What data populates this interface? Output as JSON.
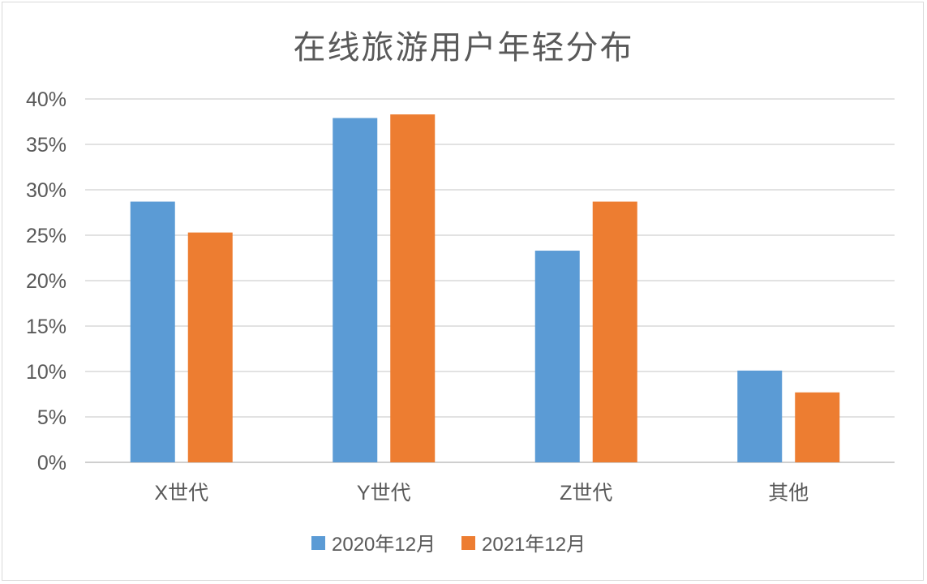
{
  "chart_data": {
    "type": "bar",
    "title": "在线旅游用户年轻分布",
    "categories": [
      "X世代",
      "Y世代",
      "Z世代",
      "其他"
    ],
    "series": [
      {
        "name": "2020年12月",
        "color": "#5b9bd5",
        "values": [
          28.7,
          37.9,
          23.3,
          10.1
        ]
      },
      {
        "name": "2021年12月",
        "color": "#ed7d31",
        "values": [
          25.3,
          38.3,
          28.7,
          7.7
        ]
      }
    ],
    "y_tick_labels": [
      "0%",
      "5%",
      "10%",
      "15%",
      "20%",
      "25%",
      "30%",
      "35%",
      "40%"
    ],
    "ylim": [
      0,
      40
    ],
    "ytick_step": 5,
    "unit": "%",
    "grid": true,
    "legend_position": "bottom",
    "xlabel": "",
    "ylabel": ""
  }
}
